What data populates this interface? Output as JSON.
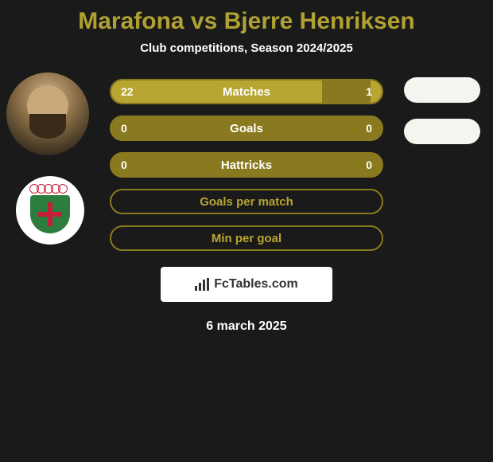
{
  "title": "Marafona vs Bjerre Henriksen",
  "subtitle": "Club competitions, Season 2024/2025",
  "stats": [
    {
      "label": "Matches",
      "left_value": "22",
      "right_value": "1",
      "left_fill_pct": 78,
      "right_fill_pct": 4,
      "has_values": true,
      "empty_style": false
    },
    {
      "label": "Goals",
      "left_value": "0",
      "right_value": "0",
      "left_fill_pct": 0,
      "right_fill_pct": 0,
      "has_values": true,
      "empty_style": false
    },
    {
      "label": "Hattricks",
      "left_value": "0",
      "right_value": "0",
      "left_fill_pct": 0,
      "right_fill_pct": 0,
      "has_values": true,
      "empty_style": false
    },
    {
      "label": "Goals per match",
      "left_value": "",
      "right_value": "",
      "left_fill_pct": 0,
      "right_fill_pct": 0,
      "has_values": false,
      "empty_style": true
    },
    {
      "label": "Min per goal",
      "left_value": "",
      "right_value": "",
      "left_fill_pct": 0,
      "right_fill_pct": 0,
      "has_values": false,
      "empty_style": true
    }
  ],
  "branding": "FcTables.com",
  "date": "6 march 2025",
  "colors": {
    "background": "#1a1a1a",
    "accent": "#b0a132",
    "bar_base": "#8a7a1f",
    "bar_fill": "#b8a632",
    "text_light": "#ffffff"
  }
}
